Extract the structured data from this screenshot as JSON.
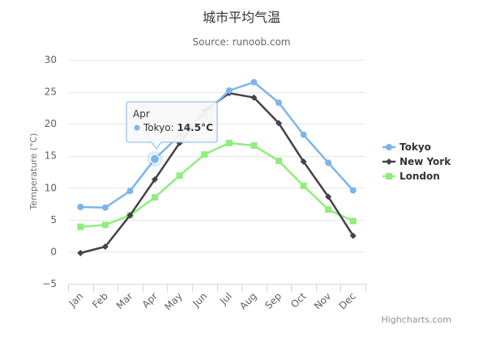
{
  "chart_data": {
    "type": "line",
    "title": "城市平均气温",
    "subtitle": "Source: runoob.com",
    "ylabel": "Temperature (°C)",
    "xlabel": "",
    "categories": [
      "Jan",
      "Feb",
      "Mar",
      "Apr",
      "May",
      "Jun",
      "Jul",
      "Aug",
      "Sep",
      "Oct",
      "Nov",
      "Dec"
    ],
    "ylim": [
      -5,
      30
    ],
    "yticks": [
      -5,
      0,
      5,
      10,
      15,
      20,
      25,
      30
    ],
    "grid": true,
    "legend_position": "right",
    "series": [
      {
        "name": "Tokyo",
        "color": "#7cb5ec",
        "marker": "circle",
        "values": [
          7.0,
          6.9,
          9.5,
          14.5,
          18.2,
          21.5,
          25.2,
          26.5,
          23.3,
          18.3,
          13.9,
          9.6
        ]
      },
      {
        "name": "New York",
        "color": "#434348",
        "marker": "diamond",
        "values": [
          -0.2,
          0.8,
          5.7,
          11.3,
          17.0,
          22.0,
          24.8,
          24.1,
          20.1,
          14.1,
          8.6,
          2.5
        ]
      },
      {
        "name": "London",
        "color": "#90ed7d",
        "marker": "square",
        "values": [
          3.9,
          4.2,
          5.7,
          8.5,
          11.9,
          15.2,
          17.0,
          16.6,
          14.2,
          10.3,
          6.6,
          4.8
        ]
      }
    ],
    "tooltip": {
      "category": "Apr",
      "series": "Tokyo",
      "value_text": "14.5°C",
      "series_index": 0,
      "point_index": 3
    },
    "credits": "Highcharts.com"
  }
}
